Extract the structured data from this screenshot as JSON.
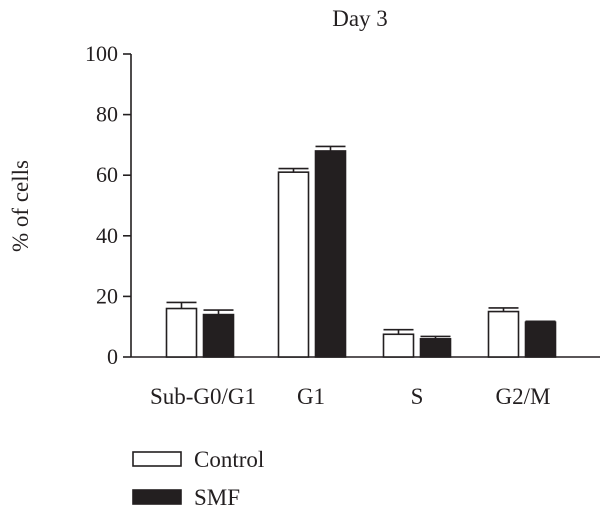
{
  "chart_data": {
    "type": "bar",
    "title": "Day 3",
    "xlabel": "",
    "ylabel": "% of cells",
    "ylim": [
      0,
      100
    ],
    "yticks": [
      0,
      20,
      40,
      60,
      80,
      100
    ],
    "categories": [
      "Sub-G0/G1",
      "G1",
      "S",
      "G2/M"
    ],
    "series": [
      {
        "name": "Control",
        "values": [
          16,
          61,
          7.5,
          15
        ],
        "errors": [
          2,
          1.2,
          1.5,
          1.2
        ],
        "color": "#ffffff"
      },
      {
        "name": "SMF",
        "values": [
          14,
          68,
          6,
          11.5
        ],
        "errors": [
          1.5,
          1.5,
          0.8,
          0.3
        ],
        "color": "#231f20"
      }
    ],
    "grid": false,
    "legend_position": "bottom-left"
  }
}
